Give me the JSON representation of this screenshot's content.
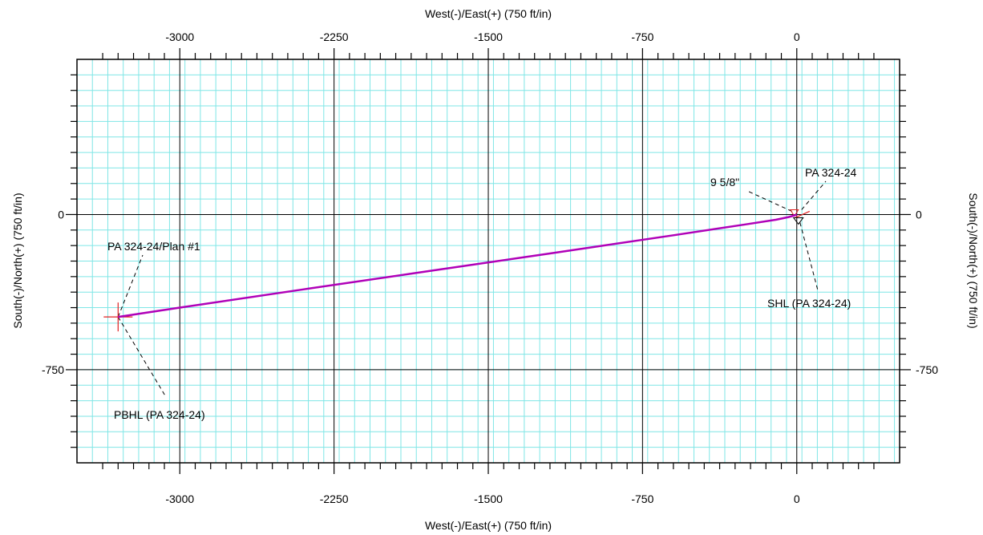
{
  "chart_data": {
    "type": "line",
    "xlabel_top": "West(-)/East(+) (750 ft/in)",
    "xlabel_bottom": "West(-)/East(+) (750 ft/in)",
    "ylabel_left": "South(-)/North(+) (750 ft/in)",
    "ylabel_right": "South(-)/North(+) (750 ft/in)",
    "xlim": [
      -3500,
      500
    ],
    "ylim": [
      -1200,
      750
    ],
    "x_ticks": [
      -3000,
      -2250,
      -1500,
      -750,
      0
    ],
    "x_tick_labels": [
      "-3000",
      "-2250",
      "-1500",
      "-750",
      "0"
    ],
    "y_ticks": [
      0,
      -750
    ],
    "y_tick_labels": [
      "0",
      "-750"
    ],
    "minor_step": 75,
    "grid": true,
    "colors": {
      "minor_grid": "#7fe6e6",
      "major_grid": "#000000",
      "wellpath": "#b000b8",
      "target": "#e02020"
    },
    "series": [
      {
        "name": "PA 324-24/Plan #1",
        "x": [
          0,
          -10,
          -40,
          -100,
          -250,
          -600,
          -1200,
          -1800,
          -2400,
          -3000,
          -3300
        ],
        "y": [
          0,
          -4,
          -12,
          -25,
          -48,
          -100,
          -188,
          -275,
          -362,
          -450,
          -495
        ]
      }
    ],
    "annotations": [
      {
        "text": "PA 324-24/Plan #1",
        "x": -3300,
        "y": -495,
        "color": "#b000b8"
      },
      {
        "text": "PBHL (PA 324-24)",
        "x": -3300,
        "y": -495,
        "color": "#000000"
      },
      {
        "text": "9 5/8\"",
        "x": 0,
        "y": 0,
        "color": "#000000"
      },
      {
        "text": "PA 324-24",
        "x": 0,
        "y": 0,
        "color": "#000000"
      },
      {
        "text": "SHL (PA 324-24)",
        "x": 0,
        "y": 0,
        "color": "#000000"
      }
    ]
  }
}
